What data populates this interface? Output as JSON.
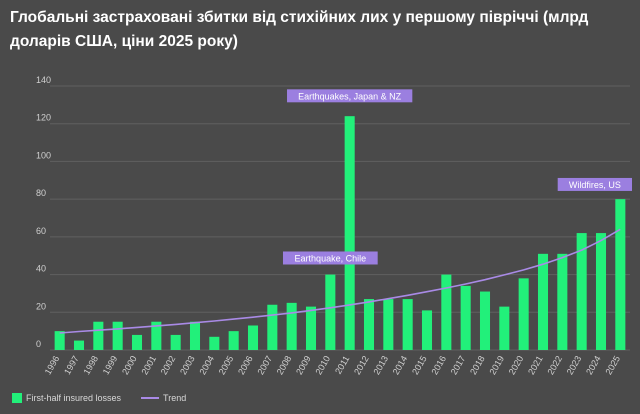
{
  "title": "Глобальні застраховані збитки від стихійних лих у першому півріччі (млрд доларів США, ціни 2025 року)",
  "colors": {
    "bar": "#22f07a",
    "trend": "#a98ae6",
    "annotation_bg": "#9b7fe0",
    "grid": "#606060",
    "text": "#d0d0d0"
  },
  "legend": {
    "bars": "First-half insured losses",
    "trend": "Trend"
  },
  "chart_data": {
    "type": "bar",
    "categories": [
      "1996",
      "1997",
      "1998",
      "1999",
      "2000",
      "2001",
      "2002",
      "2003",
      "2004",
      "2005",
      "2006",
      "2007",
      "2008",
      "2009",
      "2010",
      "2011",
      "2012",
      "2013",
      "2014",
      "2015",
      "2016",
      "2017",
      "2018",
      "2019",
      "2020",
      "2021",
      "2022",
      "2023",
      "2024",
      "2025"
    ],
    "series": [
      {
        "name": "First-half insured losses",
        "values": [
          10,
          5,
          15,
          15,
          8,
          15,
          8,
          15,
          7,
          10,
          13,
          24,
          25,
          23,
          40,
          124,
          27,
          27,
          27,
          21,
          40,
          34,
          31,
          23,
          38,
          51,
          51,
          62,
          62,
          80
        ]
      },
      {
        "name": "Trend",
        "type": "line",
        "values": [
          9,
          9.8,
          10.5,
          11.2,
          12,
          12.8,
          13.6,
          14.5,
          15.4,
          16.4,
          17.4,
          18.5,
          19.7,
          21,
          22.4,
          23.9,
          25.5,
          27.2,
          29,
          30.9,
          32.9,
          35,
          37.3,
          39.8,
          42.5,
          45.5,
          49,
          53,
          58,
          64
        ]
      }
    ],
    "yticks": [
      0,
      20,
      40,
      60,
      80,
      100,
      120,
      140
    ],
    "ylim": [
      0,
      140
    ],
    "grid": true,
    "annotations": [
      {
        "text": "Earthquakes, Japan & NZ",
        "category": "2011",
        "value": 134
      },
      {
        "text": "Earthquake, Chile",
        "category": "2010",
        "value": 48
      },
      {
        "text": "Wildfires, US",
        "category": "2025",
        "value": 87
      }
    ],
    "legend_position": "bottom-left"
  }
}
